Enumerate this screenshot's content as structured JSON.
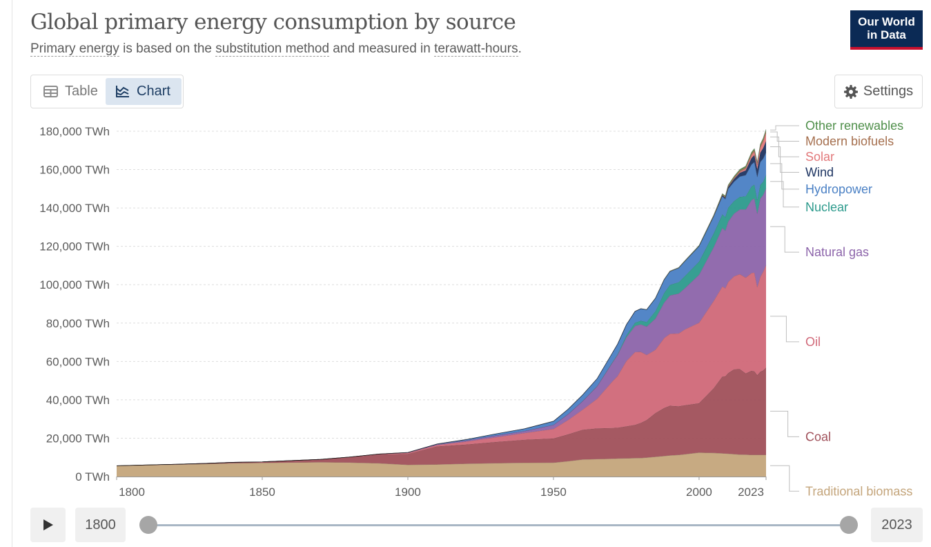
{
  "header": {
    "title": "Global primary energy consumption by source",
    "subtitle": {
      "link1": "Primary energy",
      "text1": " is based on the ",
      "link2": "substitution method",
      "text2": " and measured in ",
      "link3": "terawatt-hours",
      "text3": "."
    },
    "logo_line1": "Our World",
    "logo_line2": "in Data"
  },
  "controls": {
    "table_label": "Table",
    "chart_label": "Chart",
    "settings_label": "Settings",
    "start_year": "1800",
    "end_year": "2023",
    "timeline_start_fraction": 0,
    "timeline_end_fraction": 1
  },
  "colors": {
    "brand": "#0b2a55",
    "brand_accent": "#c8102e",
    "active_tab_bg": "#dbe5f0"
  },
  "icons": {
    "table": "table-icon",
    "chart": "chart-icon",
    "settings": "gear-icon",
    "play": "play-icon"
  },
  "chart_data": {
    "type": "area",
    "stacked": true,
    "title": "Global primary energy consumption by source",
    "ylabel": "",
    "xlabel": "",
    "xlim": [
      1800,
      2023
    ],
    "ylim": [
      0,
      180000
    ],
    "y_ticks": [
      0,
      20000,
      40000,
      60000,
      80000,
      100000,
      120000,
      140000,
      160000,
      180000
    ],
    "y_tick_labels": [
      "0 TWh",
      "20,000 TWh",
      "40,000 TWh",
      "60,000 TWh",
      "80,000 TWh",
      "100,000 TWh",
      "120,000 TWh",
      "140,000 TWh",
      "160,000 TWh",
      "180,000 TWh"
    ],
    "x_ticks": [
      1800,
      1850,
      1900,
      1950,
      2000,
      2023
    ],
    "grid": true,
    "legend": "right",
    "x": [
      1800,
      1810,
      1820,
      1830,
      1840,
      1850,
      1860,
      1870,
      1880,
      1890,
      1900,
      1910,
      1920,
      1930,
      1940,
      1950,
      1955,
      1960,
      1965,
      1970,
      1972,
      1975,
      1978,
      1980,
      1982,
      1985,
      1988,
      1990,
      1993,
      1995,
      2000,
      2005,
      2008,
      2009,
      2010,
      2012,
      2014,
      2016,
      2018,
      2019,
      2020,
      2021,
      2022,
      2023
    ],
    "series": [
      {
        "name": "Traditional biomass",
        "color": "#c4a57b",
        "values": [
          5556,
          5900,
          6200,
          6550,
          6900,
          7111,
          7300,
          7450,
          7300,
          6900,
          6111,
          6300,
          6700,
          7000,
          7200,
          7222,
          8000,
          8900,
          9100,
          9300,
          9400,
          9500,
          9600,
          9700,
          9900,
          10300,
          10700,
          11000,
          11300,
          11600,
          12500,
          12300,
          12100,
          12000,
          11900,
          11700,
          11500,
          11400,
          11300,
          11300,
          11300,
          11300,
          11300,
          11300
        ]
      },
      {
        "name": "Coal",
        "color": "#a0505a",
        "values": [
          97,
          150,
          200,
          300,
          500,
          560,
          1000,
          1500,
          2800,
          4500,
          5700,
          9400,
          10000,
          11000,
          12000,
          12600,
          14000,
          15500,
          16000,
          16000,
          16000,
          16700,
          17300,
          18300,
          19500,
          22800,
          25000,
          25900,
          25300,
          25500,
          25700,
          33700,
          40000,
          40200,
          42000,
          44200,
          44500,
          42300,
          43800,
          43500,
          41500,
          43300,
          44000,
          45500
        ]
      },
      {
        "name": "Oil",
        "color": "#d06878",
        "values": [
          0,
          0,
          0,
          0,
          0,
          0,
          0,
          20,
          100,
          300,
          500,
          700,
          1500,
          2500,
          3500,
          5000,
          7500,
          10500,
          15500,
          24000,
          27000,
          34000,
          38000,
          37000,
          34000,
          33000,
          36500,
          37500,
          38000,
          39500,
          42000,
          45500,
          47000,
          46000,
          47500,
          48500,
          49500,
          50000,
          51000,
          51500,
          46000,
          49500,
          51500,
          53500
        ]
      },
      {
        "name": "Natural gas",
        "color": "#8c64aa",
        "values": [
          0,
          0,
          0,
          0,
          0,
          0,
          0,
          0,
          0,
          50,
          200,
          400,
          600,
          900,
          1000,
          2100,
          3000,
          4400,
          6500,
          9600,
          11000,
          12300,
          13600,
          14300,
          14800,
          16300,
          18500,
          20000,
          20800,
          21400,
          25000,
          28000,
          30500,
          30000,
          31500,
          32700,
          33700,
          35500,
          38000,
          38700,
          38300,
          40800,
          40000,
          40000
        ]
      },
      {
        "name": "Nuclear",
        "color": "#2c9a8c",
        "values": [
          0,
          0,
          0,
          0,
          0,
          0,
          0,
          0,
          0,
          0,
          0,
          0,
          0,
          0,
          0,
          0,
          0,
          0,
          100,
          200,
          400,
          1000,
          1700,
          1900,
          2300,
          3800,
          4900,
          5500,
          5900,
          6300,
          6800,
          7100,
          7100,
          7000,
          7200,
          6500,
          6600,
          6900,
          7100,
          7200,
          7000,
          7100,
          6800,
          7000
        ]
      },
      {
        "name": "Hydropower",
        "color": "#4a80c4",
        "values": [
          0,
          0,
          0,
          0,
          0,
          0,
          0,
          0,
          0,
          0,
          50,
          200,
          500,
          800,
          1200,
          1900,
          2600,
          3300,
          3900,
          4800,
          5200,
          5600,
          5900,
          6300,
          6500,
          6700,
          7000,
          7000,
          7400,
          7700,
          8000,
          8800,
          9300,
          9400,
          9800,
          10100,
          10600,
          11000,
          11500,
          11700,
          12000,
          11900,
          12100,
          11600
        ]
      },
      {
        "name": "Wind",
        "color": "#1d3461",
        "values": [
          0,
          0,
          0,
          0,
          0,
          0,
          0,
          0,
          0,
          0,
          0,
          0,
          0,
          0,
          0,
          0,
          0,
          0,
          0,
          0,
          0,
          0,
          0,
          0,
          0,
          0,
          10,
          10,
          20,
          30,
          80,
          250,
          600,
          750,
          950,
          1400,
          1900,
          2500,
          3300,
          3700,
          4100,
          4900,
          5500,
          6000
        ]
      },
      {
        "name": "Solar",
        "color": "#e2787a",
        "values": [
          0,
          0,
          0,
          0,
          0,
          0,
          0,
          0,
          0,
          0,
          0,
          0,
          0,
          0,
          0,
          0,
          0,
          0,
          0,
          0,
          0,
          0,
          0,
          0,
          0,
          0,
          0,
          0,
          0,
          0,
          5,
          10,
          30,
          50,
          90,
          280,
          520,
          850,
          1500,
          1800,
          2200,
          2700,
          3400,
          4200
        ]
      },
      {
        "name": "Modern biofuels",
        "color": "#a56f4e",
        "values": [
          0,
          0,
          0,
          0,
          0,
          0,
          0,
          0,
          0,
          0,
          0,
          0,
          0,
          0,
          0,
          0,
          0,
          0,
          0,
          0,
          0,
          0,
          0,
          30,
          60,
          100,
          130,
          140,
          150,
          160,
          170,
          270,
          480,
          520,
          590,
          630,
          740,
          790,
          860,
          900,
          850,
          920,
          1000,
          1100
        ]
      },
      {
        "name": "Other renewables",
        "color": "#4f8f4a",
        "values": [
          0,
          0,
          0,
          0,
          0,
          0,
          0,
          0,
          0,
          0,
          0,
          0,
          0,
          0,
          0,
          0,
          0,
          0,
          0,
          0,
          0,
          0,
          0,
          0,
          30,
          60,
          90,
          120,
          150,
          170,
          230,
          330,
          400,
          430,
          470,
          530,
          580,
          620,
          680,
          700,
          720,
          760,
          790,
          830
        ]
      }
    ]
  }
}
